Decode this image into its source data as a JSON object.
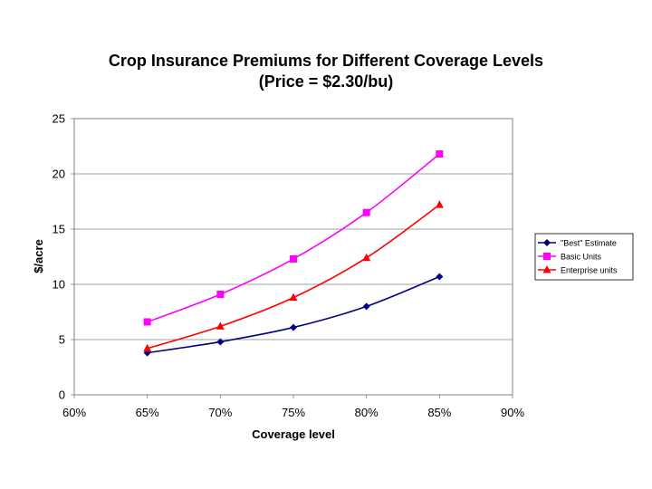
{
  "chart_data": {
    "type": "line",
    "title": "Crop Insurance Premiums for Different Coverage Levels",
    "subtitle": "(Price = $2.30/bu)",
    "xlabel": "Coverage level",
    "ylabel": "$/acre",
    "xlim": [
      0.6,
      0.9
    ],
    "ylim": [
      0,
      25
    ],
    "x_ticks": [
      "60%",
      "65%",
      "70%",
      "75%",
      "80%",
      "85%",
      "90%"
    ],
    "x_tick_values": [
      0.6,
      0.65,
      0.7,
      0.75,
      0.8,
      0.85,
      0.9
    ],
    "y_ticks": [
      "0",
      "5",
      "10",
      "15",
      "20",
      "25"
    ],
    "y_tick_values": [
      0,
      5,
      10,
      15,
      20,
      25
    ],
    "grid": "horizontal",
    "legend_position": "right",
    "x": [
      0.65,
      0.7,
      0.75,
      0.8,
      0.85
    ],
    "series": [
      {
        "name": "\"Best\" Estimate",
        "color": "#000080",
        "marker": "diamond",
        "values": [
          3.8,
          4.8,
          6.1,
          8.0,
          10.7
        ]
      },
      {
        "name": "Basic Units",
        "color": "#ff00ff",
        "marker": "square",
        "values": [
          6.6,
          9.1,
          12.3,
          16.5,
          21.8
        ]
      },
      {
        "name": "Enterprise units",
        "color": "#ff0000",
        "marker": "triangle",
        "values": [
          4.2,
          6.2,
          8.8,
          12.4,
          17.2
        ]
      }
    ]
  }
}
